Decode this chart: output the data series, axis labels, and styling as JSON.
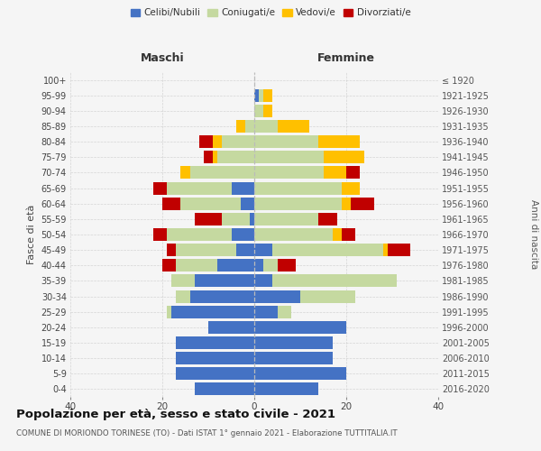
{
  "age_groups": [
    "0-4",
    "5-9",
    "10-14",
    "15-19",
    "20-24",
    "25-29",
    "30-34",
    "35-39",
    "40-44",
    "45-49",
    "50-54",
    "55-59",
    "60-64",
    "65-69",
    "70-74",
    "75-79",
    "80-84",
    "85-89",
    "90-94",
    "95-99",
    "100+"
  ],
  "birth_years": [
    "2016-2020",
    "2011-2015",
    "2006-2010",
    "2001-2005",
    "1996-2000",
    "1991-1995",
    "1986-1990",
    "1981-1985",
    "1976-1980",
    "1971-1975",
    "1966-1970",
    "1961-1965",
    "1956-1960",
    "1951-1955",
    "1946-1950",
    "1941-1945",
    "1936-1940",
    "1931-1935",
    "1926-1930",
    "1921-1925",
    "≤ 1920"
  ],
  "colors": {
    "celibi": "#4472c4",
    "coniugati": "#c5d9a0",
    "vedovi": "#ffc000",
    "divorziati": "#c00000"
  },
  "maschi": {
    "celibi": [
      13,
      17,
      17,
      17,
      10,
      18,
      14,
      13,
      8,
      4,
      5,
      1,
      3,
      5,
      0,
      0,
      0,
      0,
      0,
      0,
      0
    ],
    "coniugati": [
      0,
      0,
      0,
      0,
      0,
      1,
      3,
      5,
      9,
      13,
      14,
      6,
      13,
      14,
      14,
      8,
      7,
      2,
      0,
      0,
      0
    ],
    "vedovi": [
      0,
      0,
      0,
      0,
      0,
      0,
      0,
      0,
      0,
      0,
      0,
      0,
      0,
      0,
      2,
      1,
      2,
      2,
      0,
      0,
      0
    ],
    "divorziati": [
      0,
      0,
      0,
      0,
      0,
      0,
      0,
      0,
      3,
      2,
      3,
      6,
      4,
      3,
      0,
      2,
      3,
      0,
      0,
      0,
      0
    ]
  },
  "femmine": {
    "celibi": [
      14,
      20,
      17,
      17,
      20,
      5,
      10,
      4,
      2,
      4,
      0,
      0,
      0,
      0,
      0,
      0,
      0,
      0,
      0,
      1,
      0
    ],
    "coniugati": [
      0,
      0,
      0,
      0,
      0,
      3,
      12,
      27,
      3,
      24,
      17,
      14,
      19,
      19,
      15,
      15,
      14,
      5,
      2,
      1,
      0
    ],
    "vedovi": [
      0,
      0,
      0,
      0,
      0,
      0,
      0,
      0,
      0,
      1,
      2,
      0,
      2,
      4,
      5,
      9,
      9,
      7,
      2,
      2,
      0
    ],
    "divorziati": [
      0,
      0,
      0,
      0,
      0,
      0,
      0,
      0,
      4,
      5,
      3,
      4,
      5,
      0,
      3,
      0,
      0,
      0,
      0,
      0,
      0
    ]
  },
  "title": "Popolazione per età, sesso e stato civile - 2021",
  "subtitle": "COMUNE DI MORIONDO TORINESE (TO) - Dati ISTAT 1° gennaio 2021 - Elaborazione TUTTITALIA.IT",
  "xlabel_maschi": "Maschi",
  "xlabel_femmine": "Femmine",
  "ylabel_left": "Fasce di età",
  "ylabel_right": "Anni di nascita",
  "xlim": 40,
  "background_color": "#f5f5f5",
  "grid_color": "#cccccc",
  "legend_labels": [
    "Celibi/Nubili",
    "Coniugati/e",
    "Vedovi/e",
    "Divorziati/e"
  ]
}
